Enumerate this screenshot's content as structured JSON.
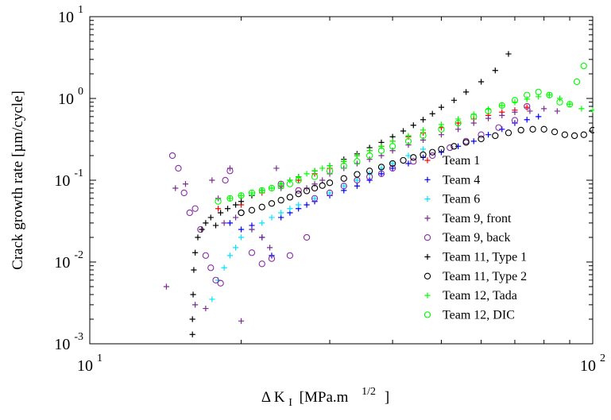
{
  "chart_data": {
    "type": "scatter",
    "title": "",
    "xlabel": {
      "prefix": "Δ K",
      "subscript": "I",
      "unit": "[MPa.m",
      "exponent": "1/2",
      "close": "]"
    },
    "ylabel": "Crack growth rate [µm/cycle]",
    "xscale": "log",
    "yscale": "log",
    "xlim": [
      10,
      100
    ],
    "ylim": [
      0.001,
      10
    ],
    "grid": false,
    "legend_position": "lower-right",
    "x_ticks": [
      {
        "value": 10,
        "base": "10",
        "exp": "1"
      },
      {
        "value": 100,
        "base": "10",
        "exp": "2"
      }
    ],
    "y_ticks": [
      {
        "value": 0.001,
        "base": "10",
        "exp": "-3"
      },
      {
        "value": 0.01,
        "base": "10",
        "exp": "-2"
      },
      {
        "value": 0.1,
        "base": "10",
        "exp": "-1"
      },
      {
        "value": 1,
        "base": "10",
        "exp": "0"
      },
      {
        "value": 10,
        "base": "10",
        "exp": "1"
      }
    ],
    "series": [
      {
        "name": "Team 1",
        "marker": "plus",
        "color": "#ff0000",
        "x": [
          18,
          20,
          22,
          24,
          26,
          28,
          30,
          32,
          34,
          36,
          38,
          40,
          43,
          46,
          50,
          54,
          58,
          62,
          66,
          70,
          74
        ],
        "y": [
          0.045,
          0.05,
          0.07,
          0.085,
          0.1,
          0.12,
          0.14,
          0.17,
          0.2,
          0.23,
          0.26,
          0.3,
          0.34,
          0.38,
          0.44,
          0.5,
          0.56,
          0.62,
          0.68,
          0.72,
          0.78
        ]
      },
      {
        "name": "Team 4",
        "marker": "plus",
        "color": "#0000ff",
        "x": [
          19,
          20,
          21,
          22,
          23,
          24,
          25,
          26,
          27,
          28,
          30,
          32,
          34,
          36,
          38,
          40,
          43,
          46,
          50,
          54,
          58,
          62,
          66,
          70,
          74,
          78
        ],
        "y": [
          0.03,
          0.025,
          0.028,
          0.02,
          0.012,
          0.035,
          0.04,
          0.045,
          0.05,
          0.055,
          0.065,
          0.075,
          0.085,
          0.1,
          0.12,
          0.14,
          0.16,
          0.19,
          0.22,
          0.26,
          0.3,
          0.36,
          0.42,
          0.5,
          0.55,
          0.6
        ]
      },
      {
        "name": "Team 6",
        "marker": "plus",
        "color": "#00e5ff",
        "x": [
          17.5,
          18,
          18.5,
          19,
          19.5,
          20,
          21,
          22,
          23,
          24,
          25,
          26,
          28,
          30,
          32,
          34,
          36,
          38,
          40,
          43,
          46
        ],
        "y": [
          0.0035,
          0.006,
          0.0085,
          0.012,
          0.015,
          0.02,
          0.025,
          0.03,
          0.035,
          0.04,
          0.045,
          0.05,
          0.06,
          0.07,
          0.085,
          0.1,
          0.12,
          0.14,
          0.16,
          0.2,
          0.24
        ]
      },
      {
        "name": "Team 9, front",
        "marker": "plus",
        "color": "#7b2c8f",
        "x": [
          14.2,
          14.8,
          15.5,
          16.2,
          17,
          17.5,
          18,
          18.5,
          19,
          19.5,
          20,
          21,
          22,
          22.8,
          23.5,
          24,
          25,
          26,
          27,
          28,
          29,
          30,
          32,
          34,
          36,
          38,
          40,
          43,
          46,
          50,
          54,
          58,
          62,
          66,
          70,
          75,
          80,
          85
        ],
        "y": [
          0.005,
          0.08,
          0.09,
          0.003,
          0.0027,
          0.1,
          0.06,
          0.03,
          0.14,
          0.035,
          0.0019,
          0.025,
          0.02,
          0.015,
          0.14,
          0.08,
          0.1,
          0.11,
          0.08,
          0.09,
          0.1,
          0.12,
          0.14,
          0.16,
          0.18,
          0.2,
          0.23,
          0.27,
          0.31,
          0.36,
          0.42,
          0.5,
          0.57,
          0.62,
          0.68,
          0.7,
          0.75,
          0.7
        ]
      },
      {
        "name": "Team 9, back",
        "marker": "circle",
        "color": "#8b2da5",
        "x": [
          14.6,
          15,
          15.4,
          15.8,
          16.2,
          16.6,
          17,
          17.4,
          17.8,
          18.2,
          18.6,
          19,
          20,
          21,
          22,
          23,
          24,
          25,
          26,
          27,
          28,
          30,
          32,
          34,
          36,
          38,
          40,
          44,
          48,
          52,
          56,
          60,
          65,
          70,
          74
        ],
        "y": [
          0.2,
          0.14,
          0.07,
          0.04,
          0.045,
          0.025,
          0.012,
          0.0085,
          0.006,
          0.0055,
          0.1,
          0.13,
          0.04,
          0.013,
          0.0095,
          0.011,
          0.09,
          0.012,
          0.075,
          0.02,
          0.06,
          0.07,
          0.085,
          0.1,
          0.11,
          0.12,
          0.14,
          0.17,
          0.2,
          0.25,
          0.3,
          0.36,
          0.44,
          0.54,
          0.8
        ]
      },
      {
        "name": "Team 11, Type 1",
        "marker": "plus",
        "color": "#000000",
        "x": [
          16.0,
          16.0,
          16.05,
          16.1,
          16.2,
          16.4,
          16.7,
          17,
          17.4,
          17.8,
          18.2,
          18.8,
          19.5,
          20,
          21,
          22,
          24,
          26,
          28,
          30,
          32,
          34,
          36,
          38,
          40,
          42,
          44,
          46,
          48,
          50,
          53,
          56,
          60,
          64,
          68
        ],
        "y": [
          0.0013,
          0.002,
          0.004,
          0.008,
          0.013,
          0.02,
          0.025,
          0.03,
          0.035,
          0.028,
          0.04,
          0.045,
          0.05,
          0.055,
          0.065,
          0.075,
          0.09,
          0.11,
          0.13,
          0.15,
          0.18,
          0.21,
          0.25,
          0.29,
          0.34,
          0.4,
          0.47,
          0.55,
          0.65,
          0.78,
          0.95,
          1.2,
          1.6,
          2.2,
          3.5
        ]
      },
      {
        "name": "Team 11, Type 2",
        "marker": "circle",
        "color": "#000000",
        "x": [
          20,
          21,
          22,
          23,
          24,
          25,
          26,
          27,
          28,
          29,
          30,
          32,
          34,
          36,
          38,
          40,
          42,
          44,
          46,
          48,
          50,
          53,
          56,
          60,
          64,
          68,
          72,
          76,
          80,
          84,
          88,
          92,
          96,
          100
        ],
        "y": [
          0.04,
          0.043,
          0.047,
          0.052,
          0.057,
          0.062,
          0.068,
          0.074,
          0.08,
          0.086,
          0.093,
          0.105,
          0.118,
          0.13,
          0.145,
          0.16,
          0.175,
          0.19,
          0.205,
          0.22,
          0.24,
          0.26,
          0.29,
          0.32,
          0.35,
          0.38,
          0.41,
          0.42,
          0.42,
          0.39,
          0.36,
          0.35,
          0.36,
          0.41
        ]
      },
      {
        "name": "Team 12, Tada",
        "marker": "plus",
        "color": "#00ff00",
        "x": [
          19,
          20,
          21,
          22,
          23,
          24,
          25,
          26,
          27,
          28,
          29,
          30,
          32,
          34,
          36,
          38,
          40,
          43,
          46,
          50,
          54,
          58,
          62,
          66,
          70,
          74,
          78,
          82,
          86,
          90,
          95,
          100
        ],
        "y": [
          0.06,
          0.065,
          0.07,
          0.075,
          0.08,
          0.09,
          0.1,
          0.11,
          0.12,
          0.13,
          0.14,
          0.15,
          0.17,
          0.2,
          0.23,
          0.26,
          0.3,
          0.35,
          0.41,
          0.48,
          0.56,
          0.64,
          0.74,
          0.82,
          0.9,
          0.98,
          1.05,
          1.1,
          1.0,
          0.85,
          0.75,
          0.72
        ]
      },
      {
        "name": "Team 12, DIC",
        "marker": "circle",
        "color": "#00ff00",
        "x": [
          18,
          19,
          20,
          21,
          22,
          23,
          24,
          25,
          26,
          28,
          30,
          32,
          34,
          36,
          38,
          40,
          43,
          46,
          50,
          54,
          58,
          62,
          66,
          70,
          74,
          78,
          82,
          86,
          90,
          93,
          96
        ],
        "y": [
          0.055,
          0.06,
          0.065,
          0.07,
          0.075,
          0.08,
          0.085,
          0.09,
          0.1,
          0.11,
          0.13,
          0.15,
          0.17,
          0.2,
          0.23,
          0.26,
          0.3,
          0.35,
          0.42,
          0.5,
          0.6,
          0.7,
          0.82,
          0.95,
          1.1,
          1.2,
          1.1,
          0.9,
          0.85,
          1.6,
          2.5
        ]
      }
    ]
  }
}
